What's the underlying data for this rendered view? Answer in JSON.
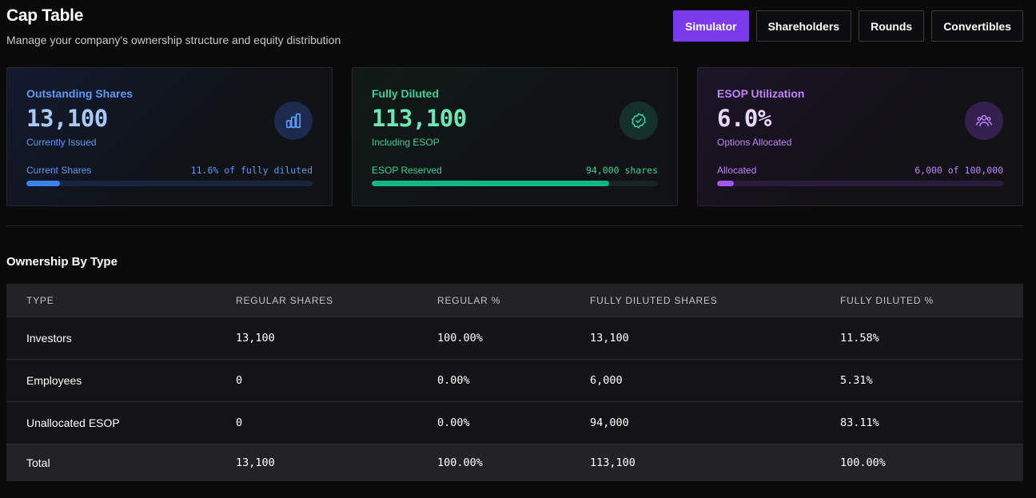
{
  "header": {
    "title": "Cap Table",
    "subtitle": "Manage your company's ownership structure and equity distribution",
    "tabs": [
      {
        "label": "Simulator",
        "active": true
      },
      {
        "label": "Shareholders",
        "active": false
      },
      {
        "label": "Rounds",
        "active": false
      },
      {
        "label": "Convertibles",
        "active": false
      }
    ]
  },
  "cards": {
    "outstanding": {
      "label": "Outstanding Shares",
      "value": "13,100",
      "sub": "Currently Issued",
      "foot_left": "Current Shares",
      "foot_right": "11.6% of fully diluted",
      "progress": 0.116,
      "icon": "bar-chart-icon",
      "color": "#3b82f6"
    },
    "fully_diluted": {
      "label": "Fully Diluted",
      "value": "113,100",
      "sub": "Including ESOP",
      "foot_left": "ESOP Reserved",
      "foot_right": "94,000 shares",
      "progress": 0.831,
      "icon": "verified-badge-icon",
      "color": "#10b981"
    },
    "esop": {
      "label": "ESOP Utilization",
      "value": "6.0%",
      "sub": "Options Allocated",
      "foot_left": "Allocated",
      "foot_right": "6,000 of 100,000",
      "progress": 0.06,
      "icon": "users-icon",
      "color": "#a855f7"
    }
  },
  "ownership": {
    "title": "Ownership By Type",
    "columns": [
      "TYPE",
      "REGULAR SHARES",
      "REGULAR %",
      "FULLY DILUTED SHARES",
      "FULLY DILUTED %"
    ],
    "rows": [
      [
        "Investors",
        "13,100",
        "100.00%",
        "13,100",
        "11.58%"
      ],
      [
        "Employees",
        "0",
        "0.00%",
        "6,000",
        "5.31%"
      ],
      [
        "Unallocated ESOP",
        "0",
        "0.00%",
        "94,000",
        "83.11%"
      ]
    ],
    "total": [
      "Total",
      "13,100",
      "100.00%",
      "113,100",
      "100.00%"
    ]
  }
}
